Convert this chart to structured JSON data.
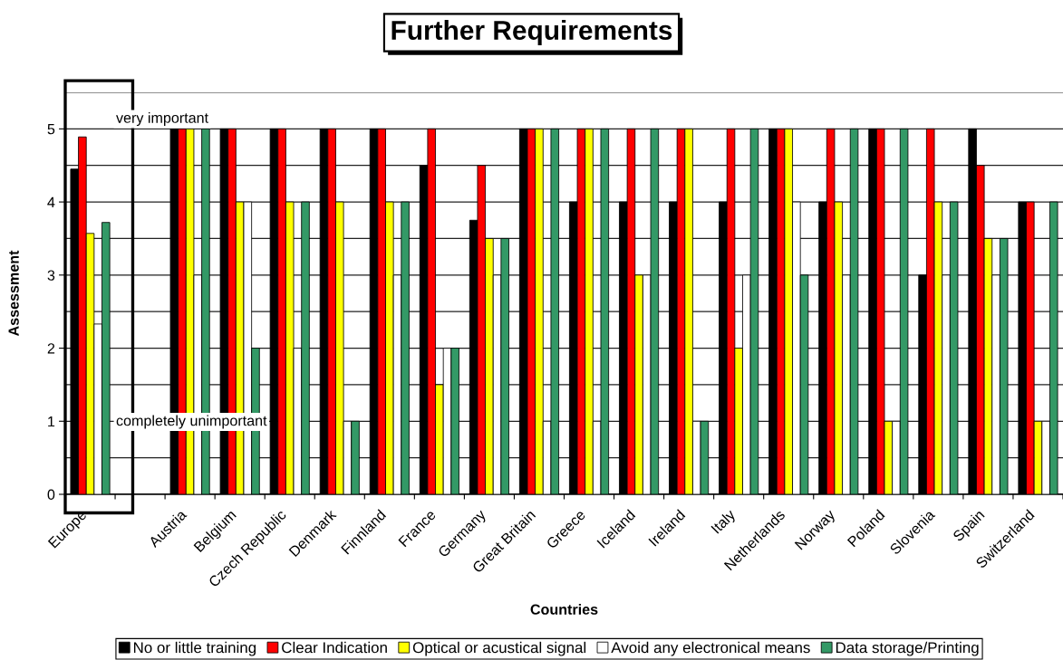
{
  "chart_data": {
    "type": "bar",
    "title": "Further Requirements",
    "xlabel": "Countries",
    "ylabel": "Assessment",
    "categories": [
      "Europe",
      null,
      "Austria",
      "Belgium",
      "Czech Republic",
      "Denmark",
      "Finnland",
      "France",
      "Germany",
      "Great Britain",
      "Greece",
      "Iceland",
      "Ireland",
      "Italy",
      "Netherlands",
      "Norway",
      "Poland",
      "Slovenia",
      "Spain",
      "Switzerland"
    ],
    "series": [
      {
        "name": "No or little training",
        "color": "#000000",
        "values": [
          4.45,
          null,
          5,
          5,
          5,
          5,
          5,
          4.5,
          3.75,
          5,
          4,
          4,
          4,
          4,
          5,
          4,
          5,
          3,
          5,
          4
        ]
      },
      {
        "name": "Clear Indication",
        "color": "#ff0000",
        "values": [
          4.89,
          null,
          5,
          5,
          5,
          5,
          5,
          5,
          4.5,
          5,
          5,
          5,
          5,
          5,
          5,
          5,
          5,
          5,
          4.5,
          4
        ]
      },
      {
        "name": "Optical or acustical signal",
        "color": "#ffff00",
        "values": [
          3.57,
          null,
          5,
          4,
          4,
          4,
          4,
          1.5,
          3.5,
          5,
          5,
          3,
          5,
          2,
          5,
          4,
          1,
          4,
          3.5,
          1
        ]
      },
      {
        "name": "Avoid any electronical means",
        "color": "#ffffff",
        "values": [
          2.33,
          null,
          3,
          4,
          2,
          1,
          3,
          2,
          3,
          1,
          1,
          3,
          1,
          3,
          4,
          3,
          1,
          3,
          3,
          1
        ]
      },
      {
        "name": "Data storage/Printing",
        "color": "#339966",
        "values": [
          3.72,
          null,
          5,
          2,
          4,
          1,
          4,
          2,
          3.5,
          5,
          5,
          5,
          1,
          5,
          3,
          5,
          5,
          4,
          3.5,
          4
        ]
      }
    ],
    "ylim": [
      0,
      5.5
    ],
    "yticks": [
      0,
      {
        "value": 0.5,
        "label": null
      },
      1,
      {
        "value": 1.5,
        "label": null
      },
      2,
      {
        "value": 2.5,
        "label": null
      },
      3,
      {
        "value": 3.5,
        "label": null
      },
      4,
      {
        "value": 4.5,
        "label": null
      },
      5,
      {
        "value": 5.5,
        "label": null
      }
    ],
    "grid": "y",
    "legend": "bottom",
    "annotations": [
      "very important",
      "completely unimportant"
    ]
  }
}
